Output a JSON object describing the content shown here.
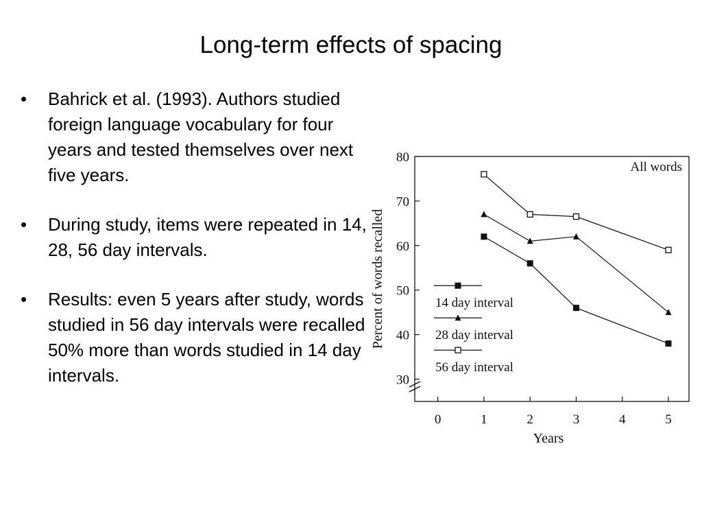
{
  "slide": {
    "title": "Long-term effects of spacing",
    "bullets": [
      "Bahrick et al. (1993). Authors studied foreign language vocabulary for four years and tested themselves over next five years.",
      "During study, items were repeated in 14, 28, 56 day intervals.",
      "Results: even 5 years after study, words studied in 56 day intervals were recalled 50% more than words studied in 14 day intervals."
    ],
    "bullet_glyph": "•"
  },
  "chart_data": {
    "type": "line",
    "title": "",
    "annotation": "All words",
    "xlabel": "Years",
    "ylabel": "Percent of words recalled",
    "x_ticks": [
      0,
      1,
      2,
      3,
      4,
      5
    ],
    "y_ticks": [
      30,
      40,
      50,
      60,
      70,
      80
    ],
    "xlim": [
      -0.5,
      5
    ],
    "ylim": [
      25,
      80
    ],
    "y_axis_break": true,
    "legend_position": "left-center",
    "series": [
      {
        "name": "14 day interval",
        "marker": "filled-square",
        "x": [
          1,
          2,
          3,
          5
        ],
        "y": [
          62,
          56,
          46,
          38
        ]
      },
      {
        "name": "28 day interval",
        "marker": "filled-triangle",
        "x": [
          1,
          2,
          3,
          5
        ],
        "y": [
          67,
          61,
          62,
          45
        ]
      },
      {
        "name": "56 day interval",
        "marker": "open-square",
        "x": [
          1,
          2,
          3,
          5
        ],
        "y": [
          76,
          67,
          66.5,
          59
        ]
      }
    ],
    "colors": {
      "line": "#111111",
      "axis": "#111111"
    }
  }
}
